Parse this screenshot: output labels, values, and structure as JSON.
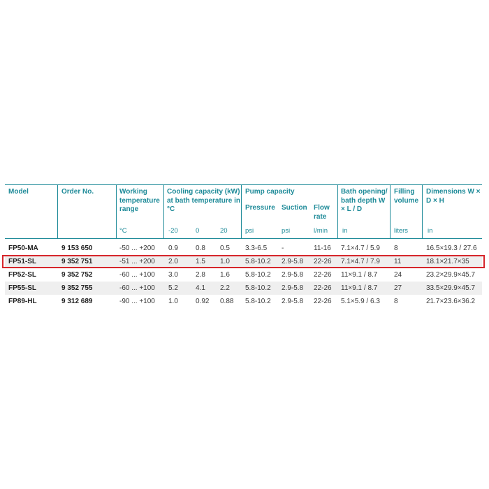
{
  "header": {
    "model": "Model",
    "order_no": "Order No.",
    "working_temp": "Working temperature range",
    "working_temp_unit": "°C",
    "cooling": "Cooling capacity (kW) at bath temperature in °C",
    "cooling_temps": [
      "-20",
      "0",
      "20"
    ],
    "pump": "Pump capacity",
    "pressure": "Pressure",
    "pressure_unit": "psi",
    "suction": "Suction",
    "suction_unit": "psi",
    "flow": "Flow rate",
    "flow_unit": "l/min",
    "bath": "Bath opening/ bath depth W × L / D",
    "bath_unit": "in",
    "filling": "Filling volume",
    "filling_unit": "liters",
    "dims": "Dimensions W × D × H",
    "dims_unit": "in"
  },
  "rows": [
    {
      "model": "FP50-MA",
      "order": "9 153 650",
      "temp": "-50 ... +200",
      "c1": "0.9",
      "c2": "0.8",
      "c3": "0.5",
      "pressure": "3.3-6.5",
      "suction": "-",
      "flow": "11-16",
      "bath": "7.1×4.7 / 5.9",
      "filling": "8",
      "dims": "16.5×19.3 / 27.6"
    },
    {
      "model": "FP51-SL",
      "order": "9 352 751",
      "temp": "-51 ... +200",
      "c1": "2.0",
      "c2": "1.5",
      "c3": "1.0",
      "pressure": "5.8-10.2",
      "suction": "2.9-5.8",
      "flow": "22-26",
      "bath": "7.1×4.7 / 7.9",
      "filling": "11",
      "dims": "18.1×21.7×35"
    },
    {
      "model": "FP52-SL",
      "order": "9 352 752",
      "temp": "-60 ... +100",
      "c1": "3.0",
      "c2": "2.8",
      "c3": "1.6",
      "pressure": "5.8-10.2",
      "suction": "2.9-5.8",
      "flow": "22-26",
      "bath": "11×9.1 / 8.7",
      "filling": "24",
      "dims": "23.2×29.9×45.7"
    },
    {
      "model": "FP55-SL",
      "order": "9 352 755",
      "temp": "-60 ... +100",
      "c1": "5.2",
      "c2": "4.1",
      "c3": "2.2",
      "pressure": "5.8-10.2",
      "suction": "2.9-5.8",
      "flow": "22-26",
      "bath": "11×9.1 / 8.7",
      "filling": "27",
      "dims": "33.5×29.9×45.7"
    },
    {
      "model": "FP89-HL",
      "order": "9 312 689",
      "temp": "-90 ... +100",
      "c1": "1.0",
      "c2": "0.92",
      "c3": "0.88",
      "pressure": "5.8-10.2",
      "suction": "2.9-5.8",
      "flow": "22-26",
      "bath": "5.1×5.9 / 6.3",
      "filling": "8",
      "dims": "21.7×23.6×36.2"
    }
  ],
  "highlight": {
    "row": "FP51-SL",
    "color": "#d6262b"
  },
  "accent_color": "#1d8a98"
}
